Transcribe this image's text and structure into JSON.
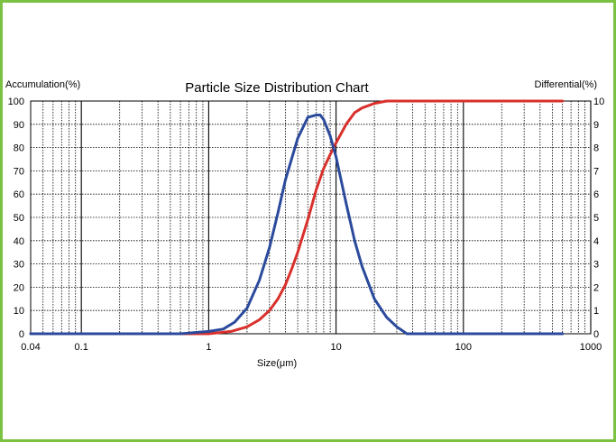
{
  "chart_data": {
    "type": "line",
    "title": "Particle Size Distribution Chart",
    "xlabel": "Size(μm)",
    "ylabel_left": "Accumulation(%)",
    "ylabel_right": "Differential(%)",
    "x_scale": "log",
    "xlim": [
      0.04,
      1000
    ],
    "ylim_left": [
      0,
      100
    ],
    "ylim_right": [
      0,
      10
    ],
    "x_ticks": [
      {
        "value": 0.04,
        "label": "0.04"
      },
      {
        "value": 0.1,
        "label": "0.1"
      },
      {
        "value": 1,
        "label": "1"
      },
      {
        "value": 10,
        "label": "10"
      },
      {
        "value": 100,
        "label": "100"
      },
      {
        "value": 1000,
        "label": "1000"
      }
    ],
    "y_ticks_left": [
      "0",
      "10",
      "20",
      "30",
      "40",
      "50",
      "60",
      "70",
      "80",
      "90",
      "100"
    ],
    "y_ticks_right": [
      "0",
      "1",
      "2",
      "3",
      "4",
      "5",
      "6",
      "7",
      "8",
      "9",
      "10"
    ],
    "grid": true,
    "series": [
      {
        "name": "Accumulation",
        "axis": "left",
        "color": "#d9302c",
        "x": [
          0.04,
          0.5,
          1.0,
          1.5,
          2.0,
          2.5,
          3.0,
          3.5,
          4.0,
          4.5,
          5.0,
          6.0,
          7.0,
          8.0,
          9.0,
          10.0,
          12.0,
          14.0,
          16.0,
          20.0,
          25.0,
          30.0,
          40.0,
          100.0,
          600.0
        ],
        "y": [
          0,
          0,
          0,
          1,
          3,
          6,
          10,
          15,
          21,
          28,
          35,
          49,
          62,
          71,
          77,
          82,
          90,
          95,
          97,
          99,
          100,
          100,
          100,
          100,
          100
        ]
      },
      {
        "name": "Differential",
        "axis": "right",
        "color": "#2b4a9c",
        "x": [
          0.04,
          0.6,
          1.0,
          1.3,
          1.6,
          2.0,
          2.5,
          3.0,
          3.5,
          4.0,
          5.0,
          6.0,
          7.0,
          7.5,
          8.0,
          9.0,
          10.0,
          12.0,
          14.0,
          16.0,
          20.0,
          25.0,
          30.0,
          36.0,
          100.0,
          600.0
        ],
        "y": [
          0,
          0,
          0.1,
          0.2,
          0.5,
          1.1,
          2.3,
          3.7,
          5.2,
          6.6,
          8.4,
          9.3,
          9.4,
          9.4,
          9.2,
          8.5,
          7.6,
          5.6,
          4.0,
          2.9,
          1.5,
          0.7,
          0.3,
          0,
          0,
          0
        ]
      }
    ]
  }
}
